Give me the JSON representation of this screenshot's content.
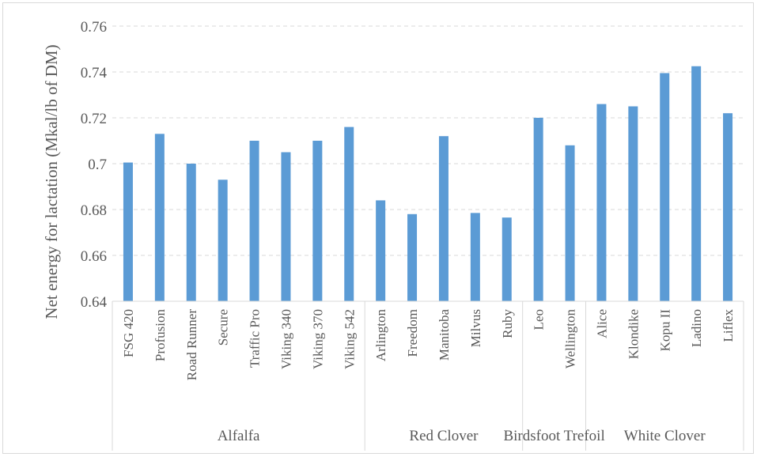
{
  "chart_data": {
    "type": "bar",
    "title": "",
    "xlabel": "",
    "ylabel": "Net energy for lactation (Mkal/lb of DM)",
    "ylim": [
      0.64,
      0.76
    ],
    "yticks": [
      "0.64",
      "0.66",
      "0.68",
      "0.7",
      "0.72",
      "0.74",
      "0.76"
    ],
    "grid": true,
    "bar_color": "#5b9bd5",
    "categories": [
      "FSG 420",
      "Profusion",
      "Road Runner",
      "Secure",
      "Traffic Pro",
      "Viking 340",
      "Viking 370",
      "Viking 542",
      "Arlington",
      "Freedom",
      "Manitoba",
      "Milvus",
      "Ruby",
      "Leo",
      "Wellington",
      "Alice",
      "Klondike",
      "Kopu II",
      "Ladino",
      "Liflex"
    ],
    "values": [
      0.7005,
      0.713,
      0.7,
      0.693,
      0.71,
      0.705,
      0.71,
      0.716,
      0.684,
      0.678,
      0.712,
      0.6785,
      0.6765,
      0.72,
      0.708,
      0.726,
      0.725,
      0.7395,
      0.7425,
      0.722
    ],
    "groups": [
      {
        "label": "Alfalfa",
        "count": 8
      },
      {
        "label": "Red Clover",
        "count": 5
      },
      {
        "label": "Birdsfoot Trefoil",
        "count": 2
      },
      {
        "label": "White Clover",
        "count": 5
      }
    ]
  }
}
